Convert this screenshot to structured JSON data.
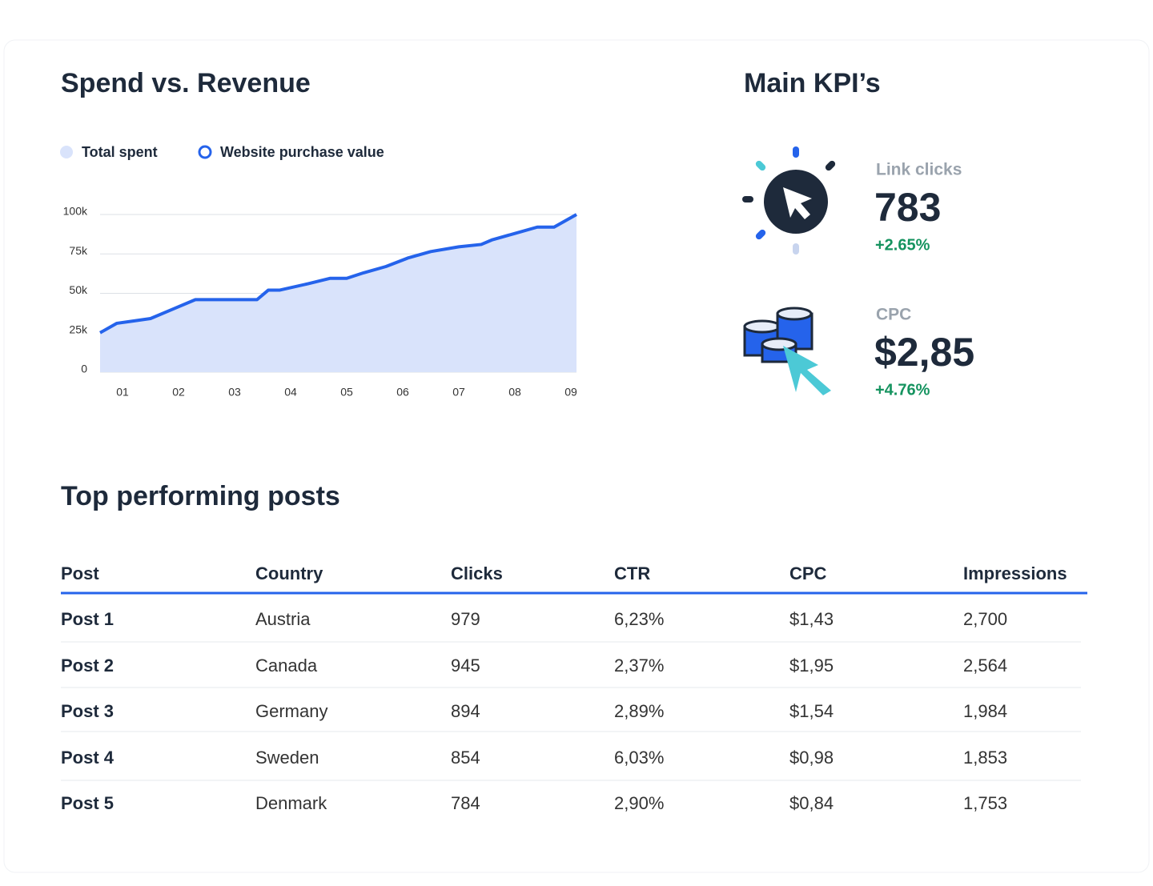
{
  "chart_data": {
    "type": "area",
    "title": "Spend vs. Revenue",
    "x": [
      0.6,
      0.9,
      1.2,
      1.5,
      1.9,
      2.3,
      2.7,
      3.0,
      3.4,
      3.6,
      3.8,
      4.3,
      4.7,
      5.0,
      5.3,
      5.7,
      6.1,
      6.5,
      7.0,
      7.4,
      7.6,
      8.0,
      8.4,
      8.7,
      9.1
    ],
    "series": [
      {
        "name": "Total spent",
        "color": "#d9e3fb",
        "values": [
          25000,
          31000,
          32500,
          34000,
          40000,
          46000,
          46000,
          46000,
          46000,
          52000,
          52000,
          56000,
          59500,
          59500,
          63000,
          67000,
          72500,
          76500,
          79500,
          81000,
          84000,
          88000,
          92000,
          92000,
          100000
        ]
      },
      {
        "name": "Website purchase value",
        "color": "#2563eb",
        "values": [
          25000,
          31000,
          32500,
          34000,
          40000,
          46000,
          46000,
          46000,
          46000,
          52000,
          52000,
          56000,
          59500,
          59500,
          63000,
          67000,
          72500,
          76500,
          79500,
          81000,
          84000,
          88000,
          92000,
          92000,
          100000
        ]
      }
    ],
    "xlim": [
      0.6,
      9.1
    ],
    "xticks": [
      {
        "value": 1,
        "label": "01"
      },
      {
        "value": 2,
        "label": "02"
      },
      {
        "value": 3,
        "label": "03"
      },
      {
        "value": 4,
        "label": "04"
      },
      {
        "value": 5,
        "label": "05"
      },
      {
        "value": 6,
        "label": "06"
      },
      {
        "value": 7,
        "label": "07"
      },
      {
        "value": 8,
        "label": "08"
      },
      {
        "value": 9,
        "label": "09"
      }
    ],
    "ylim": [
      0,
      100000
    ],
    "yticks": [
      0,
      {
        "value": 25000,
        "label": "25k"
      },
      {
        "value": 50000,
        "label": "50k"
      },
      {
        "value": 75000,
        "label": "75k"
      },
      {
        "value": 100000,
        "label": "100k"
      }
    ],
    "grid": true
  },
  "kpis": {
    "title": "Main KPI’s",
    "items": [
      {
        "label": "Link clicks",
        "value": "783",
        "change": "+2.65%"
      },
      {
        "label": "CPC",
        "value": "$2,85",
        "change": "+4.76%"
      }
    ]
  },
  "table": {
    "title": "Top performing posts",
    "header": [
      "Post",
      "Country",
      "Clicks",
      "CTR",
      "CPC",
      "Impressions"
    ],
    "rows": [
      [
        "Post 1",
        "Austria",
        "979",
        "6,23%",
        "$1,43",
        "2,700"
      ],
      [
        "Post 2",
        "Canada",
        "945",
        "2,37%",
        "$1,95",
        "2,564"
      ],
      [
        "Post 3",
        "Germany",
        "894",
        "2,89%",
        "$1,54",
        "1,984"
      ],
      [
        "Post 4",
        "Sweden",
        "854",
        "6,03%",
        "$0,98",
        "1,853"
      ],
      [
        "Post 5",
        "Denmark",
        "784",
        "2,90%",
        "$0,84",
        "1,753"
      ]
    ]
  }
}
